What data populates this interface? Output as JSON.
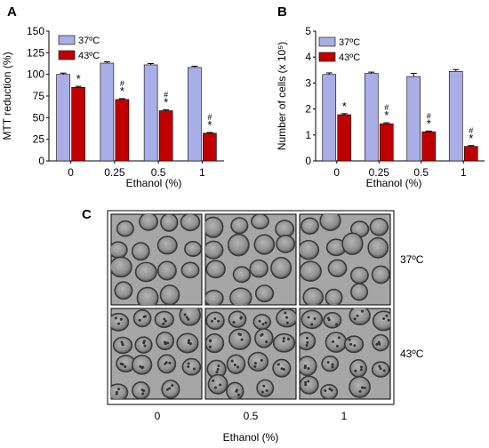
{
  "panel_labels": [
    "A",
    "B",
    "C"
  ],
  "colors": {
    "cold": "#a9aee6",
    "hot": "#c00000",
    "frame": "#000000",
    "micrograph": "#a9a9a9"
  },
  "chart_data": [
    {
      "type": "bar",
      "panel": "A",
      "categories": [
        "0",
        "0.25",
        "0.5",
        "1"
      ],
      "xlabel": "Ethanol (%)",
      "ylabel": "MTT reduction  (%)",
      "ylim": [
        0,
        150
      ],
      "yticks": [
        "0",
        "25",
        "50",
        "75",
        "100",
        "125",
        "150"
      ],
      "legend": "top-left",
      "grid": false,
      "series": [
        {
          "name": "37ºC",
          "color": "#a9aee6",
          "values": [
            100,
            113,
            111,
            108
          ],
          "errors": [
            1.5,
            1.5,
            1.5,
            1.5
          ],
          "markers": [
            "",
            "",
            "",
            ""
          ]
        },
        {
          "name": "43ºC",
          "color": "#c00000",
          "values": [
            85,
            71,
            58,
            32
          ],
          "errors": [
            1.2,
            1.0,
            1.0,
            0.8
          ],
          "markers": [
            "*",
            "#\n*",
            "#\n*",
            "#\n*"
          ]
        }
      ]
    },
    {
      "type": "bar",
      "panel": "B",
      "categories": [
        "0",
        "0.25",
        "0.5",
        "1"
      ],
      "xlabel": "Ethanol (%)",
      "ylabel": "Number of cells (x 10⁵)",
      "ylim": [
        0,
        5
      ],
      "yticks": [
        "0",
        "1",
        "2",
        "3",
        "4",
        "5"
      ],
      "legend": "top-left",
      "grid": false,
      "series": [
        {
          "name": "37ºC",
          "color": "#a9aee6",
          "values": [
            3.33,
            3.37,
            3.25,
            3.45
          ],
          "errors": [
            0.06,
            0.05,
            0.12,
            0.07
          ],
          "markers": [
            "",
            "",
            "",
            ""
          ]
        },
        {
          "name": "43ºC",
          "color": "#c00000",
          "values": [
            1.78,
            1.43,
            1.12,
            0.56
          ],
          "errors": [
            0.04,
            0.04,
            0.03,
            0.03
          ],
          "markers": [
            "*",
            "#\n*",
            "#\n*",
            "#\n*"
          ]
        }
      ]
    }
  ],
  "micrographs": {
    "columns": [
      "0",
      "0.5",
      "1"
    ],
    "rows": [
      "37ºC",
      "43ºC"
    ],
    "xlabel": "Ethanol (%)"
  }
}
